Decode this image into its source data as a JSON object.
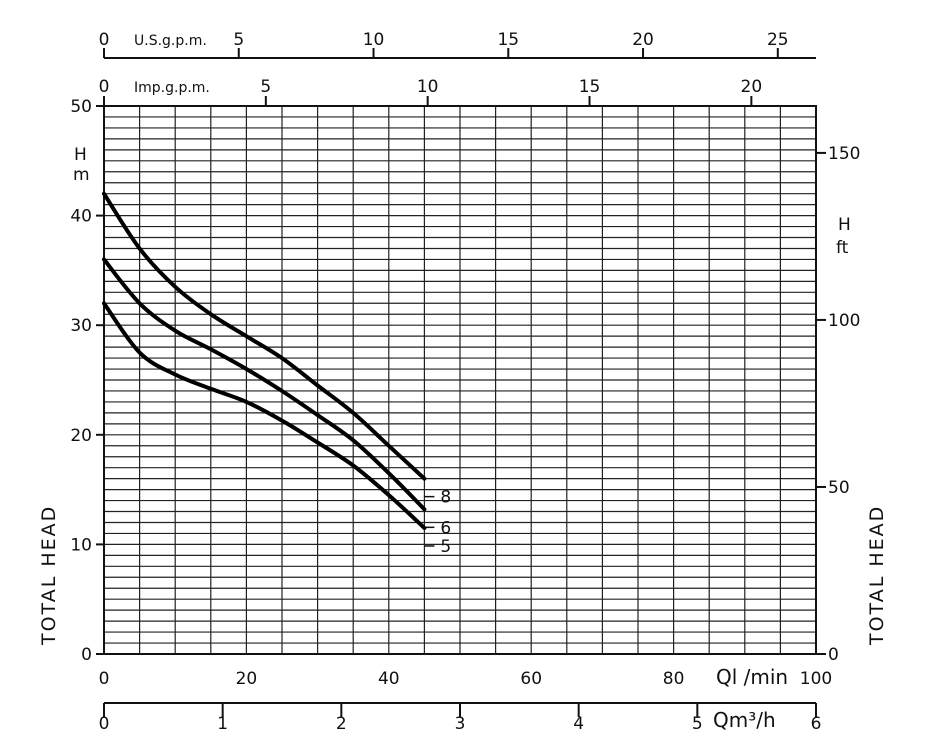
{
  "chart_data": {
    "type": "line",
    "title": "",
    "left_axis": {
      "unit_lines": [
        "H",
        "m"
      ],
      "label": "TOTAL HEAD",
      "range": [
        0,
        50
      ],
      "ticks": [
        "0",
        "10",
        "20",
        "30",
        "40",
        "50"
      ]
    },
    "right_axis": {
      "unit_lines": [
        "H",
        "ft"
      ],
      "label": "TOTAL HEAD",
      "ticks": [
        "0",
        "50",
        "100",
        "150"
      ],
      "tick_values": [
        0,
        50,
        100,
        150
      ]
    },
    "bottom_axis_lmin": {
      "unit": "Ql /min",
      "range": [
        0,
        100
      ],
      "ticks": [
        "0",
        "20",
        "40",
        "60",
        "80",
        "100"
      ]
    },
    "bottom_axis_m3h": {
      "unit": "Qm³/h",
      "ticks": [
        "0",
        "1",
        "2",
        "3",
        "4",
        "5",
        "6"
      ]
    },
    "top_axis_usgpm": {
      "unit": "U.S.g.p.m.",
      "ticks": [
        "0",
        "5",
        "10",
        "15",
        "20",
        "25"
      ]
    },
    "top_axis_impgpm": {
      "unit": "Imp.g.p.m.",
      "ticks": [
        "0",
        "5",
        "10",
        "15",
        "20"
      ]
    },
    "grid": true,
    "series": [
      {
        "name": "8",
        "x": [
          0,
          5,
          10,
          15,
          20,
          25,
          30,
          35,
          40,
          45
        ],
        "y": [
          42,
          37,
          33.5,
          31,
          29,
          27,
          24.5,
          22,
          19,
          16
        ]
      },
      {
        "name": "6",
        "x": [
          0,
          5,
          10,
          15,
          20,
          25,
          30,
          35,
          40,
          45
        ],
        "y": [
          36,
          32,
          29.5,
          27.8,
          26,
          24,
          21.8,
          19.5,
          16.5,
          13.2
        ]
      },
      {
        "name": "5",
        "x": [
          0,
          5,
          10,
          15,
          20,
          25,
          30,
          35,
          40,
          45
        ],
        "y": [
          32,
          27.5,
          25.5,
          24.2,
          23,
          21.3,
          19.3,
          17.2,
          14.5,
          11.5
        ]
      }
    ]
  }
}
